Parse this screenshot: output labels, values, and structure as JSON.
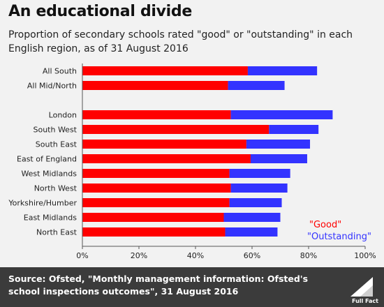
{
  "title": "An educational divide",
  "subtitle": "Proportion of secondary schools rated \"good\" or \"outstanding\" in each English region, as of 31 August 2016",
  "source": {
    "lead": "Source:",
    "text": "Ofsted, \"Monthly management information: Ofsted's school inspections outcomes\", 31 August 2016"
  },
  "brand": {
    "logo_text": "Full Fact"
  },
  "colors": {
    "good": "#ff0000",
    "outstanding": "#3333ff",
    "background": "#f2f2f2",
    "footer": "#3b3b3b"
  },
  "chart_data": {
    "type": "bar",
    "orientation": "horizontal",
    "stacked": true,
    "categories": [
      "All South",
      "All Mid/North",
      "London",
      "South West",
      "South East",
      "East of England",
      "West Midlands",
      "North West",
      "Yorkshire/Humber",
      "East Midlands",
      "North East"
    ],
    "group_gap_after": 1,
    "series": [
      {
        "name": "\"Good\"",
        "color": "#ff0000",
        "values": [
          58.5,
          51.5,
          52.5,
          66,
          58,
          59.5,
          52,
          52.5,
          52,
          50,
          50.5
        ]
      },
      {
        "name": "\"Outstanding\"",
        "color": "#3333ff",
        "values": [
          24.5,
          20,
          36,
          17.5,
          22.5,
          20,
          21.5,
          20,
          18.5,
          20,
          18.5
        ]
      }
    ],
    "xlim": [
      0,
      100
    ],
    "xticks": [
      "0%",
      "20%",
      "40%",
      "60%",
      "80%",
      "100%"
    ],
    "legend_position": "bottom-right"
  }
}
